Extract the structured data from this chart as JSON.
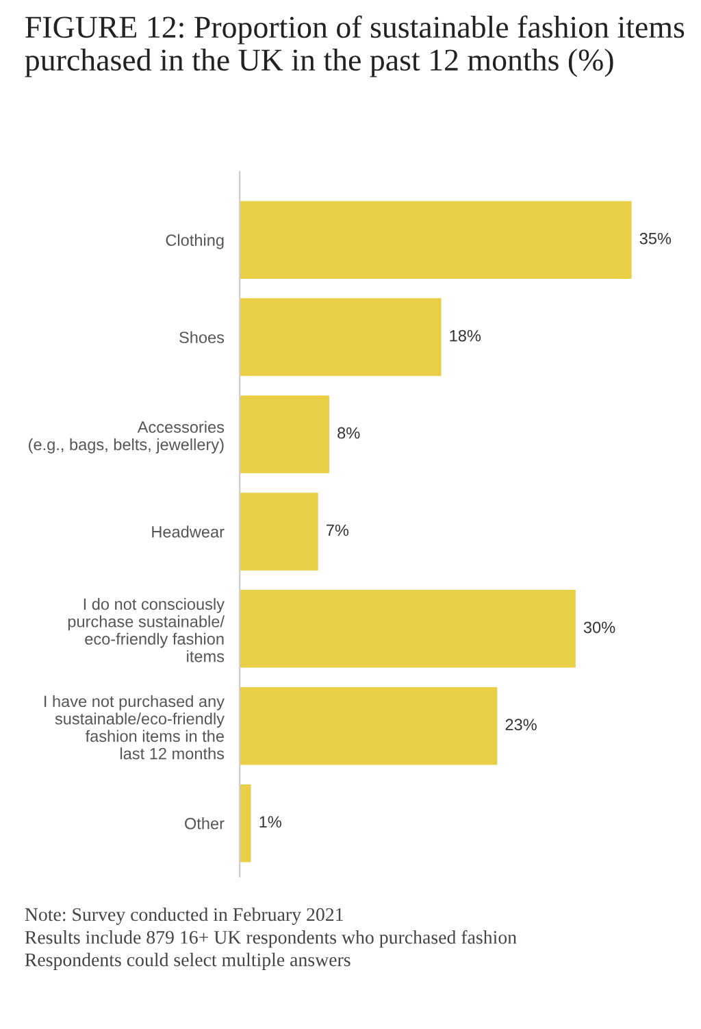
{
  "chart_data": {
    "type": "bar",
    "orientation": "horizontal",
    "title": "FIGURE 12: Proportion of sustainable fashion items purchased in the UK in the past 12 months (%)",
    "categories": [
      "Clothing",
      "Shoes",
      "Accessories\n(e.g., bags, belts, jewellery)",
      "Headwear",
      "I do not consciously\npurchase sustainable/\neco-friendly fashion\nitems",
      "I have not purchased any\nsustainable/eco-friendly\nfashion items in the\nlast 12 months",
      "Other"
    ],
    "values": [
      35,
      18,
      8,
      7,
      30,
      23,
      1
    ],
    "value_labels": [
      "35%",
      "18%",
      "8%",
      "7%",
      "30%",
      "23%",
      "1%"
    ],
    "color": "#e8cf45",
    "grid": false,
    "legend": false,
    "annotations": [
      "Note: Survey conducted in February 2021",
      "Results include 879 16+ UK respondents who purchased fashion",
      "Respondents could select multiple answers"
    ]
  }
}
